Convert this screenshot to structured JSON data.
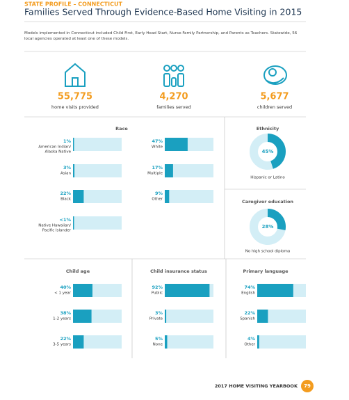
{
  "header": {
    "kicker": "STATE PROFILE – CONNECTICUT",
    "title": "Families Served Through Evidence-Based Home Visiting in 2015"
  },
  "intro": "Models implemented in Connecticut included Child First, Early Head Start, Nurse-Family Partnership, and Parents as Teachers. Statewide, 56 local agencies operated at least one of these models.",
  "stats": [
    {
      "value": "55,775",
      "label": "home visits provided"
    },
    {
      "value": "4,270",
      "label": "families served"
    },
    {
      "value": "5,677",
      "label": "children served"
    }
  ],
  "race": {
    "title": "Race",
    "items": [
      {
        "label": [
          "American Indian/",
          "Alaska Native"
        ],
        "value": 1,
        "value_label": "1%"
      },
      {
        "label": [
          "Asian"
        ],
        "value": 3,
        "value_label": "3%"
      },
      {
        "label": [
          "Black"
        ],
        "value": 22,
        "value_label": "22%"
      },
      {
        "label": [
          "Native Hawaiian/",
          "Pacific Islander"
        ],
        "value": 0.5,
        "value_label": "<1%"
      },
      {
        "label": [
          "White"
        ],
        "value": 47,
        "value_label": "47%"
      },
      {
        "label": [
          "Multiple"
        ],
        "value": 17,
        "value_label": "17%"
      },
      {
        "label": [
          "Other"
        ],
        "value": 9,
        "value_label": "9%"
      }
    ]
  },
  "ethnicity": {
    "title": "Ethnicity",
    "value": 45,
    "value_label": "45%",
    "label": "Hispanic or Latino"
  },
  "caregiver_education": {
    "title": "Caregiver education",
    "value": 28,
    "value_label": "28%",
    "label": "No high school diploma"
  },
  "child_age": {
    "title": "Child age",
    "items": [
      {
        "label": [
          "< 1 year"
        ],
        "value": 40,
        "value_label": "40%"
      },
      {
        "label": [
          "1-2 years"
        ],
        "value": 38,
        "value_label": "38%"
      },
      {
        "label": [
          "3-5 years"
        ],
        "value": 22,
        "value_label": "22%"
      }
    ]
  },
  "insurance": {
    "title": "Child insurance status",
    "items": [
      {
        "label": [
          "Public"
        ],
        "value": 92,
        "value_label": "92%"
      },
      {
        "label": [
          "Private"
        ],
        "value": 3,
        "value_label": "3%"
      },
      {
        "label": [
          "None"
        ],
        "value": 5,
        "value_label": "5%"
      }
    ]
  },
  "language": {
    "title": "Primary language",
    "items": [
      {
        "label": [
          "English"
        ],
        "value": 74,
        "value_label": "74%"
      },
      {
        "label": [
          "Spanish"
        ],
        "value": 22,
        "value_label": "22%"
      },
      {
        "label": [
          "Other"
        ],
        "value": 4,
        "value_label": "4%"
      }
    ]
  },
  "footer": {
    "text": "2017 HOME VISITING YEARBOOK",
    "page": "79"
  }
}
